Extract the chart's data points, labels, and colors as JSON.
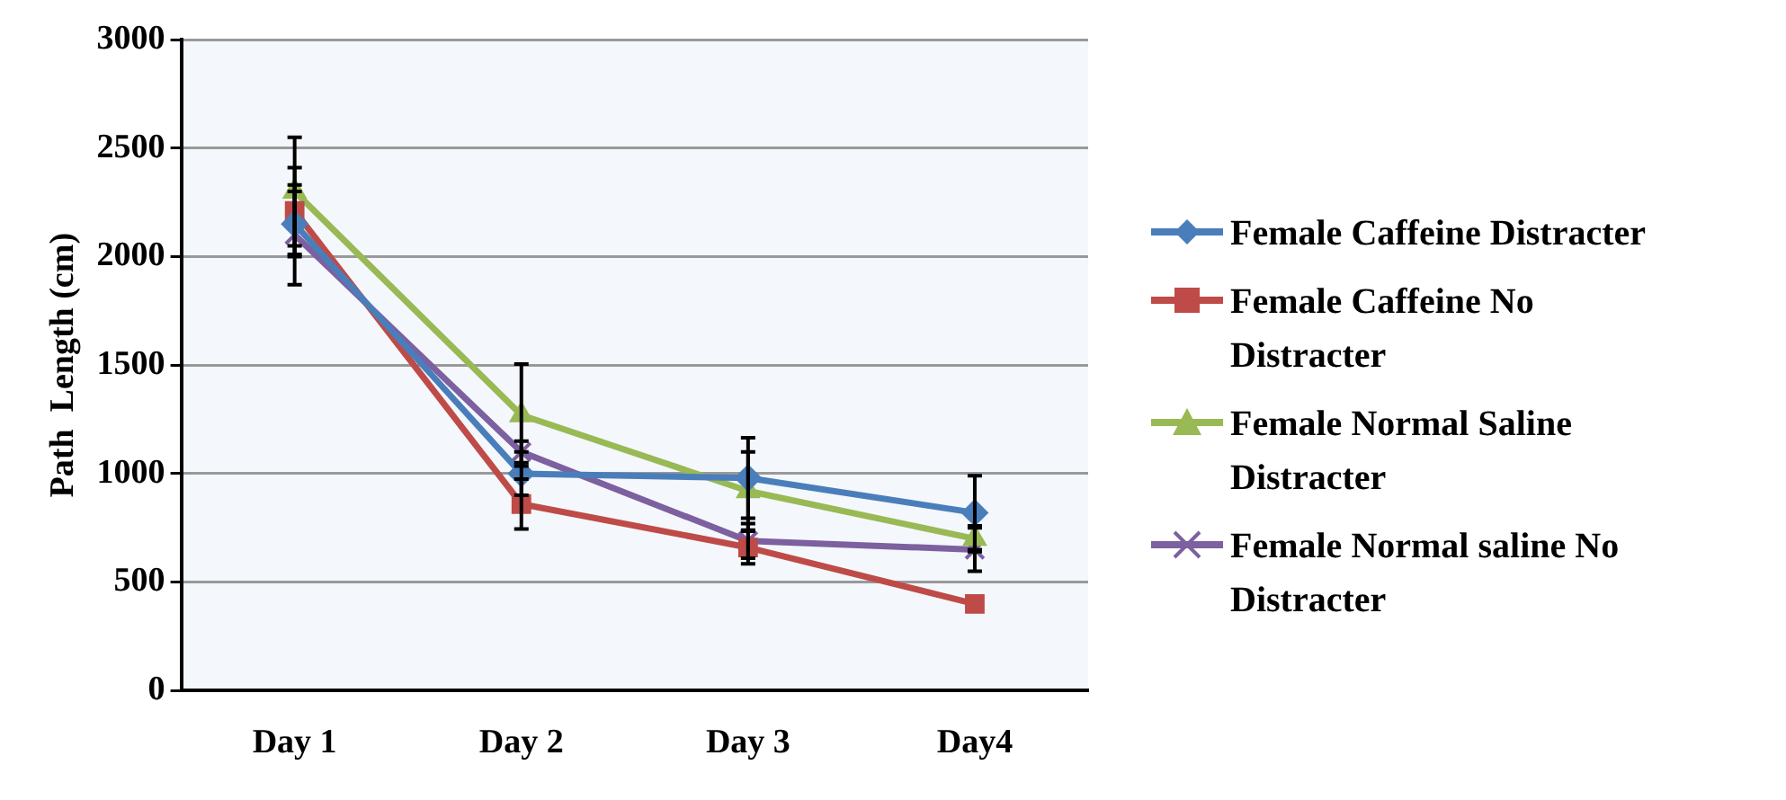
{
  "chart_data": {
    "type": "line",
    "ylabel": "Path  Length (cm)",
    "categories": [
      "Day 1",
      "Day 2",
      "Day 3",
      "Day4"
    ],
    "ylim": [
      0,
      3000
    ],
    "yticks": [
      0,
      500,
      1000,
      1500,
      2000,
      2500,
      3000
    ],
    "grid": "y",
    "legend": "right",
    "line_style": "solid",
    "series": [
      {
        "name": "Female Caffeine Distracter",
        "color": "#4a7ebb",
        "marker": "diamond",
        "values": [
          2150,
          1000,
          980,
          820
        ],
        "errors": [
          150,
          100,
          185,
          170
        ]
      },
      {
        "name": "Female Caffeine No Distracter",
        "color": "#be4b48",
        "marker": "square",
        "values": [
          2210,
          860,
          660,
          400
        ],
        "errors": [
          200,
          115,
          75,
          null
        ]
      },
      {
        "name": "Female Normal Saline Distracter",
        "color": "#98b954",
        "marker": "triangle",
        "values": [
          2300,
          1270,
          920,
          700
        ],
        "errors": [
          250,
          235,
          180,
          60
        ]
      },
      {
        "name": "Female Normal saline No Distracter",
        "color": "#7d60a0",
        "marker": "cross",
        "values": [
          2100,
          1100,
          690,
          650
        ],
        "errors": [
          230,
          50,
          80,
          100
        ]
      }
    ]
  }
}
